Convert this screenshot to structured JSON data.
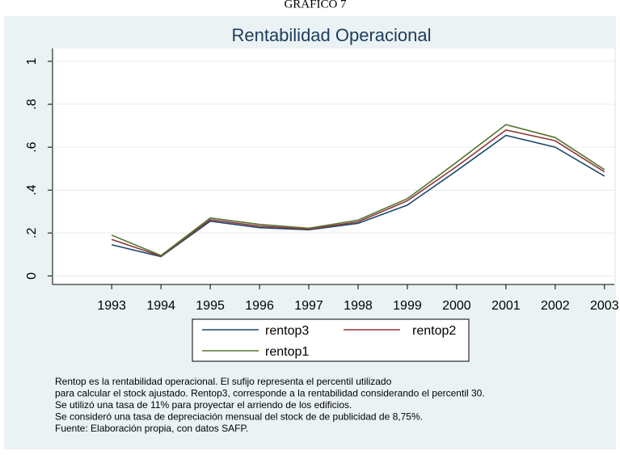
{
  "heading": "GRAFICO 7",
  "chart_data": {
    "type": "line",
    "title": "Rentabilidad Operacional",
    "x": [
      1993,
      1994,
      1995,
      1996,
      1997,
      1998,
      1999,
      2000,
      2001,
      2002,
      2003
    ],
    "xlim": [
      1991.8,
      2003.2
    ],
    "xticks": [
      1993,
      1994,
      1995,
      1996,
      1997,
      1998,
      1999,
      2000,
      2001,
      2002,
      2003
    ],
    "ylim": [
      -0.04,
      1.06
    ],
    "yticks": [
      0,
      {
        "value": 0.2,
        "label": ".2"
      },
      {
        "value": 0.4,
        "label": ".4"
      },
      {
        "value": 0.6,
        "label": ".6"
      },
      {
        "value": 0.8,
        "label": ".8"
      },
      1
    ],
    "grid": true,
    "series": [
      {
        "name": "rentop3",
        "color": "#1a476f",
        "values": [
          0.145,
          0.09,
          0.255,
          0.225,
          0.215,
          0.245,
          0.33,
          0.49,
          0.655,
          0.6,
          0.465
        ]
      },
      {
        "name": "rentop2",
        "color": "#90353b",
        "values": [
          0.17,
          0.092,
          0.262,
          0.232,
          0.218,
          0.252,
          0.35,
          0.51,
          0.68,
          0.63,
          0.485
        ]
      },
      {
        "name": "rentop1",
        "color": "#55752f",
        "values": [
          0.19,
          0.095,
          0.27,
          0.24,
          0.222,
          0.26,
          0.36,
          0.53,
          0.705,
          0.645,
          0.495
        ]
      }
    ],
    "notes": [
      "Rentop es la rentabilidad operacional. El sufijo representa el percentil utilizado",
      "para calcular el stock ajustado. Rentop3, corresponde a la rentabilidad considerando el percentil 30.",
      "Se utilizó una tasa de 11% para proyectar el arriendo de los edificios.",
      "Se consideró una tasa de depreciación mensual del stock de de publicidad de 8,75%.",
      "Fuente: Elaboración propia, con datos SAFP."
    ]
  }
}
